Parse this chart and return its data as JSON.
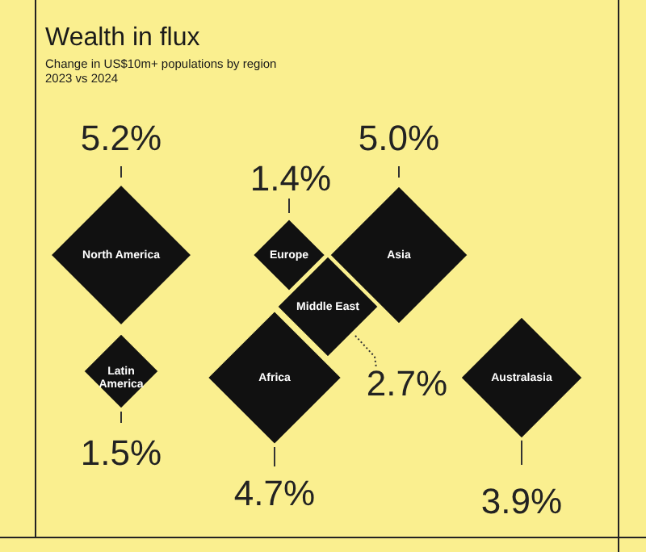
{
  "chart_data": {
    "type": "other",
    "title": "Wealth in flux",
    "subtitle": "Change in US$10m+ populations by region\n2023 vs 2024",
    "categories": [
      "North America",
      "Europe",
      "Asia",
      "Latin America",
      "Africa",
      "Middle East",
      "Australasia"
    ],
    "values": [
      5.2,
      1.4,
      5.0,
      1.5,
      4.7,
      2.7,
      3.9
    ],
    "value_labels": [
      "5.2%",
      "1.4%",
      "5.0%",
      "1.5%",
      "4.7%",
      "2.7%",
      "3.9%"
    ],
    "color": "#111111"
  }
}
